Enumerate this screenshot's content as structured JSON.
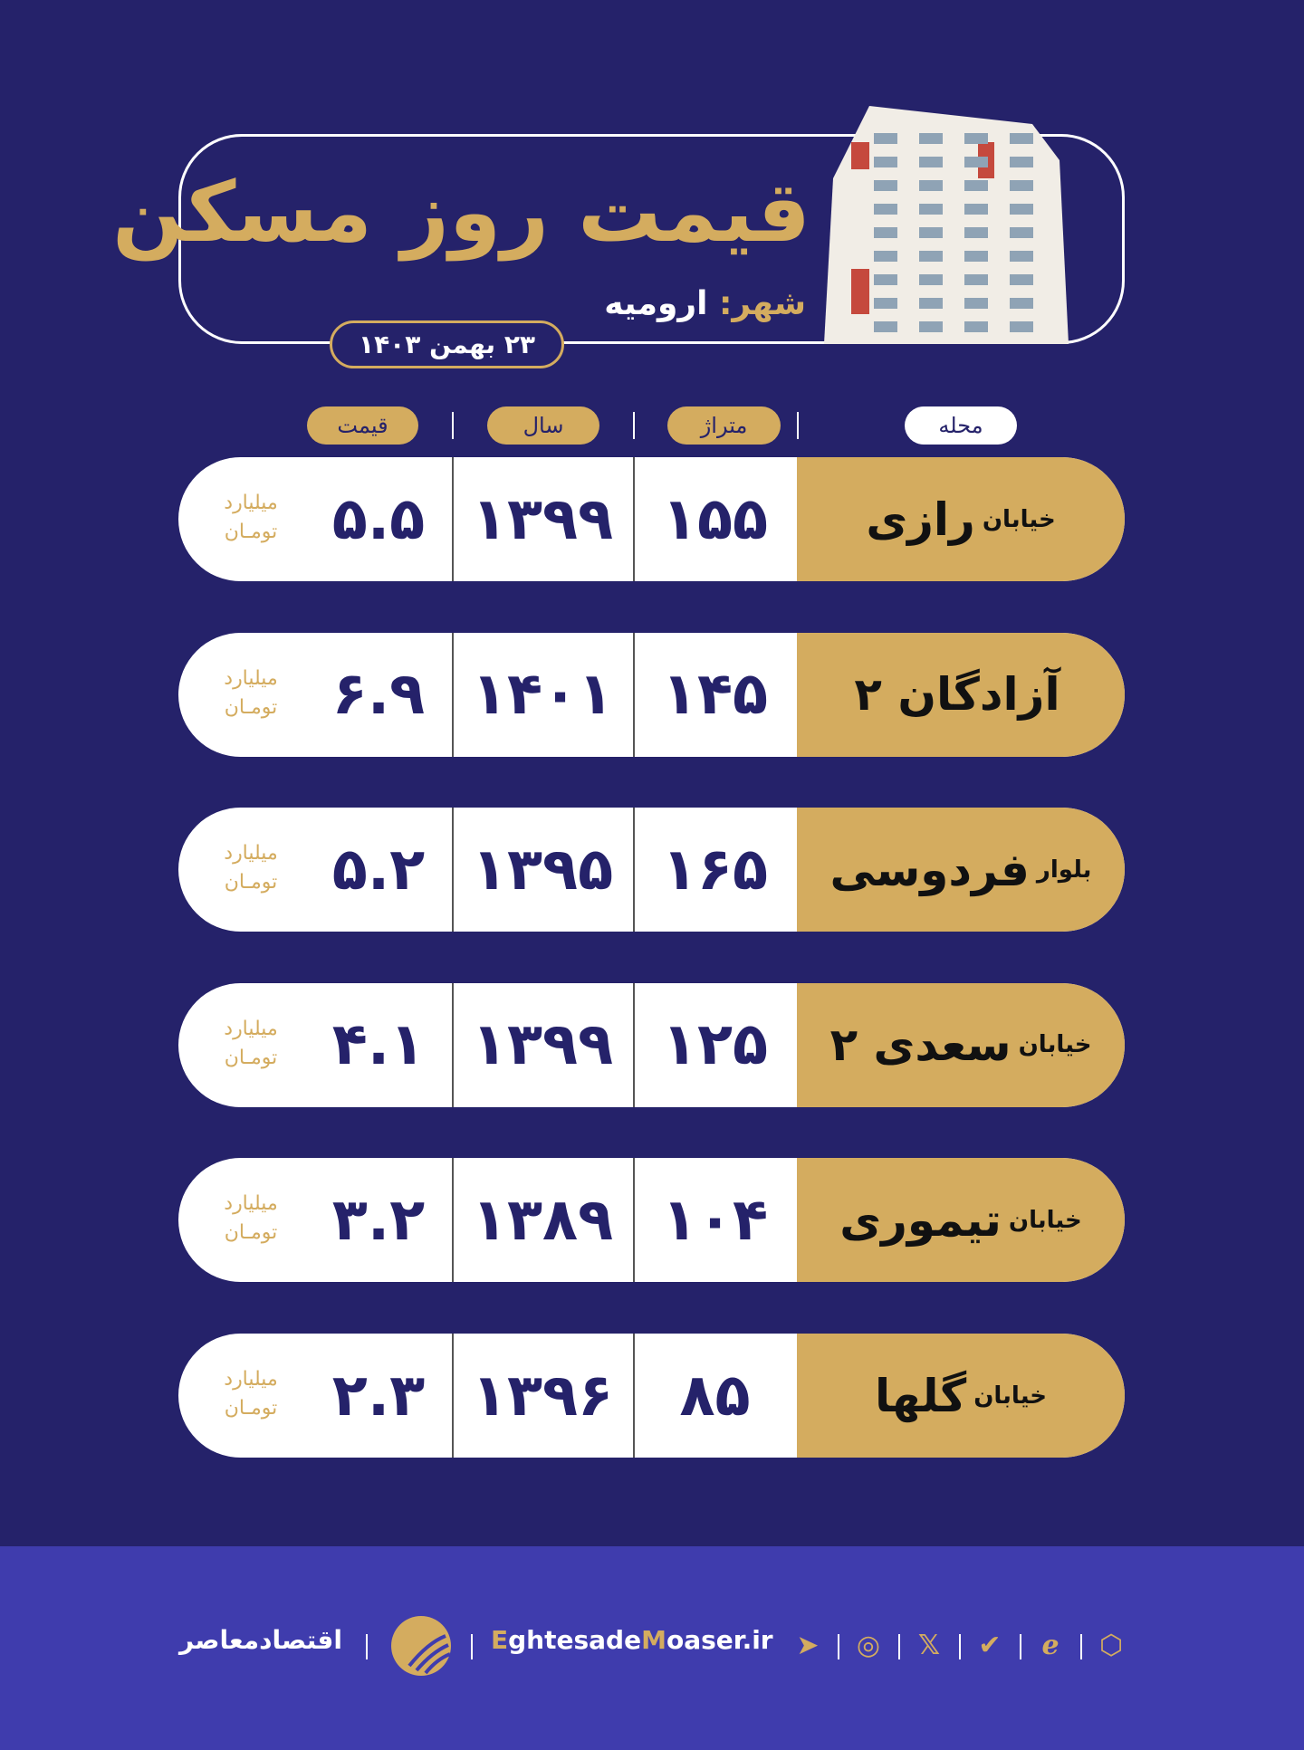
{
  "header": {
    "title": "قیمت روز مسکن",
    "city_label": "شهر:",
    "city": "ارومیه",
    "date": "۲۳ بهمن ۱۴۰۳"
  },
  "columns": {
    "neighborhood": "محله",
    "area": "متراژ",
    "year": "سال",
    "price": "قیمت"
  },
  "unit": {
    "line1": "میلیارد",
    "line2": "تومـان"
  },
  "rows": [
    {
      "prefix": "خیابان",
      "name": "رازی",
      "area": "۱۵۵",
      "year": "۱۳۹۹",
      "price": "۵.۵"
    },
    {
      "prefix": "",
      "name": "آزادگان ۲",
      "area": "۱۴۵",
      "year": "۱۴۰۱",
      "price": "۶.۹"
    },
    {
      "prefix": "بلوار",
      "name": "فردوسی",
      "area": "۱۶۵",
      "year": "۱۳۹۵",
      "price": "۵.۲"
    },
    {
      "prefix": "خیابان",
      "name": "سعدی ۲",
      "area": "۱۲۵",
      "year": "۱۳۹۹",
      "price": "۴.۱"
    },
    {
      "prefix": "خیابان",
      "name": "تیموری",
      "area": "۱۰۴",
      "year": "۱۳۸۹",
      "price": "۳.۲"
    },
    {
      "prefix": "خیابان",
      "name": "گلها",
      "area": "۸۵",
      "year": "۱۳۹۶",
      "price": "۲.۳"
    }
  ],
  "footer": {
    "brand": "اقتصادمعاصر",
    "site_e": "E",
    "site_mid": "ghtesade",
    "site_m": "M",
    "site_end": "oaser.ir",
    "icons": [
      "telegram-icon",
      "instagram-icon",
      "x-icon",
      "check-shield-icon",
      "e-logo-icon",
      "hexagon-icon"
    ]
  },
  "colors": {
    "background": "#25226a",
    "gold": "#d4ac5f",
    "footer": "#3f3cad"
  }
}
